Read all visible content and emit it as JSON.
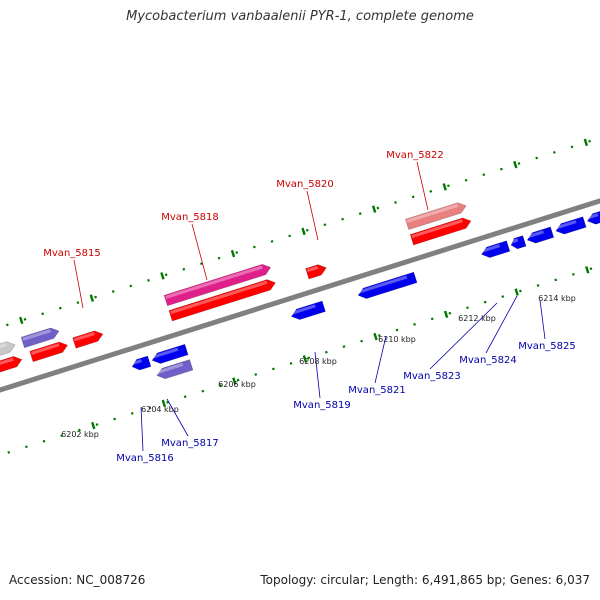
{
  "title": "Mycobacterium vanbaalenii PYR-1, complete genome",
  "footer": {
    "accession": "Accession: NC_008726",
    "topology": "Topology: circular; Length: 6,491,865 bp; Genes: 6,037"
  },
  "colors": {
    "forward_label": "#cc0000",
    "reverse_label": "#0000aa",
    "backbone": "#808080",
    "tick": "#007700"
  },
  "ticks": [
    "6202 kbp",
    "6204 kbp",
    "6206 kbp",
    "6208 kbp",
    "6210 kbp",
    "6212 kbp",
    "6214 kbp"
  ],
  "forward_genes": [
    "Mvan_5815",
    "Mvan_5818",
    "Mvan_5820",
    "Mvan_5822"
  ],
  "reverse_genes": [
    "Mvan_5816",
    "Mvan_5817",
    "Mvan_5819",
    "Mvan_5821",
    "Mvan_5823",
    "Mvan_5824",
    "Mvan_5825"
  ]
}
